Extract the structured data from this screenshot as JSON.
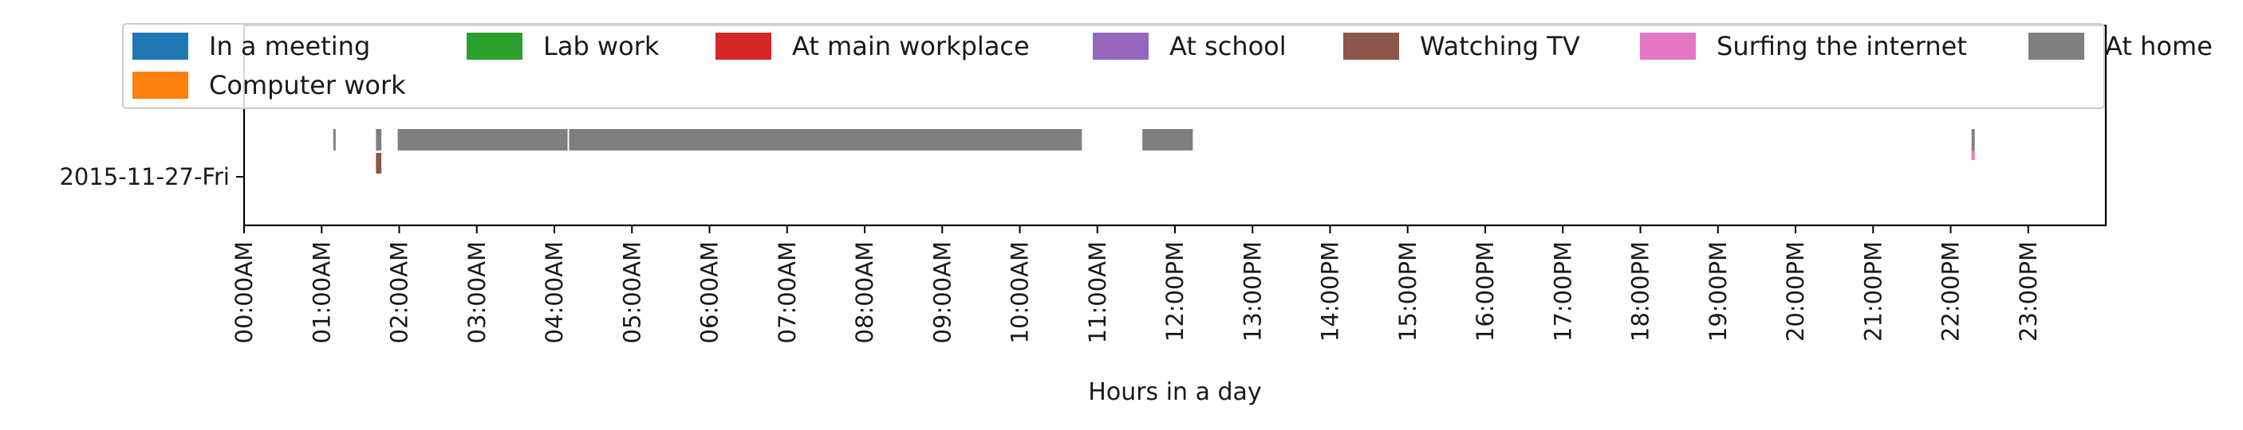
{
  "chart_data": {
    "type": "timeline",
    "xlabel": "Hours in a day",
    "ylabel": "",
    "xlim": [
      0,
      24
    ],
    "x_ticks": [
      "00:00AM",
      "01:00AM",
      "02:00AM",
      "03:00AM",
      "04:00AM",
      "05:00AM",
      "06:00AM",
      "07:00AM",
      "08:00AM",
      "09:00AM",
      "10:00AM",
      "11:00AM",
      "12:00PM",
      "13:00PM",
      "14:00PM",
      "15:00PM",
      "16:00PM",
      "17:00PM",
      "18:00PM",
      "19:00PM",
      "20:00PM",
      "21:00PM",
      "22:00PM",
      "23:00PM"
    ],
    "categories": [
      "2015-11-27-Fri"
    ],
    "legend_placement": "top",
    "series": [
      {
        "name": "In a meeting",
        "color": "#1f77b4",
        "intervals": []
      },
      {
        "name": "Computer work",
        "color": "#ff7f0e",
        "intervals": []
      },
      {
        "name": "Lab work",
        "color": "#2ca02c",
        "intervals": []
      },
      {
        "name": "At main workplace",
        "color": "#d62728",
        "intervals": []
      },
      {
        "name": "At school",
        "color": "#9467bd",
        "intervals": []
      },
      {
        "name": "Watching TV",
        "color": "#8c564b",
        "intervals": [
          {
            "category": "2015-11-27-Fri",
            "start": 1.7,
            "end": 1.77
          }
        ]
      },
      {
        "name": "Surfing the internet",
        "color": "#e377c2",
        "intervals": [
          {
            "category": "2015-11-27-Fri",
            "start": 22.27,
            "end": 22.31
          }
        ]
      },
      {
        "name": "At home",
        "color": "#7f7f7f",
        "intervals": [
          {
            "category": "2015-11-27-Fri",
            "start": 1.15,
            "end": 1.18
          },
          {
            "category": "2015-11-27-Fri",
            "start": 1.7,
            "end": 1.77
          },
          {
            "category": "2015-11-27-Fri",
            "start": 1.98,
            "end": 4.17
          },
          {
            "category": "2015-11-27-Fri",
            "start": 4.19,
            "end": 10.72
          },
          {
            "category": "2015-11-27-Fri",
            "start": 10.72,
            "end": 10.8
          },
          {
            "category": "2015-11-27-Fri",
            "start": 11.58,
            "end": 12.23
          },
          {
            "category": "2015-11-27-Fri",
            "start": 22.27,
            "end": 22.31
          }
        ]
      }
    ]
  }
}
